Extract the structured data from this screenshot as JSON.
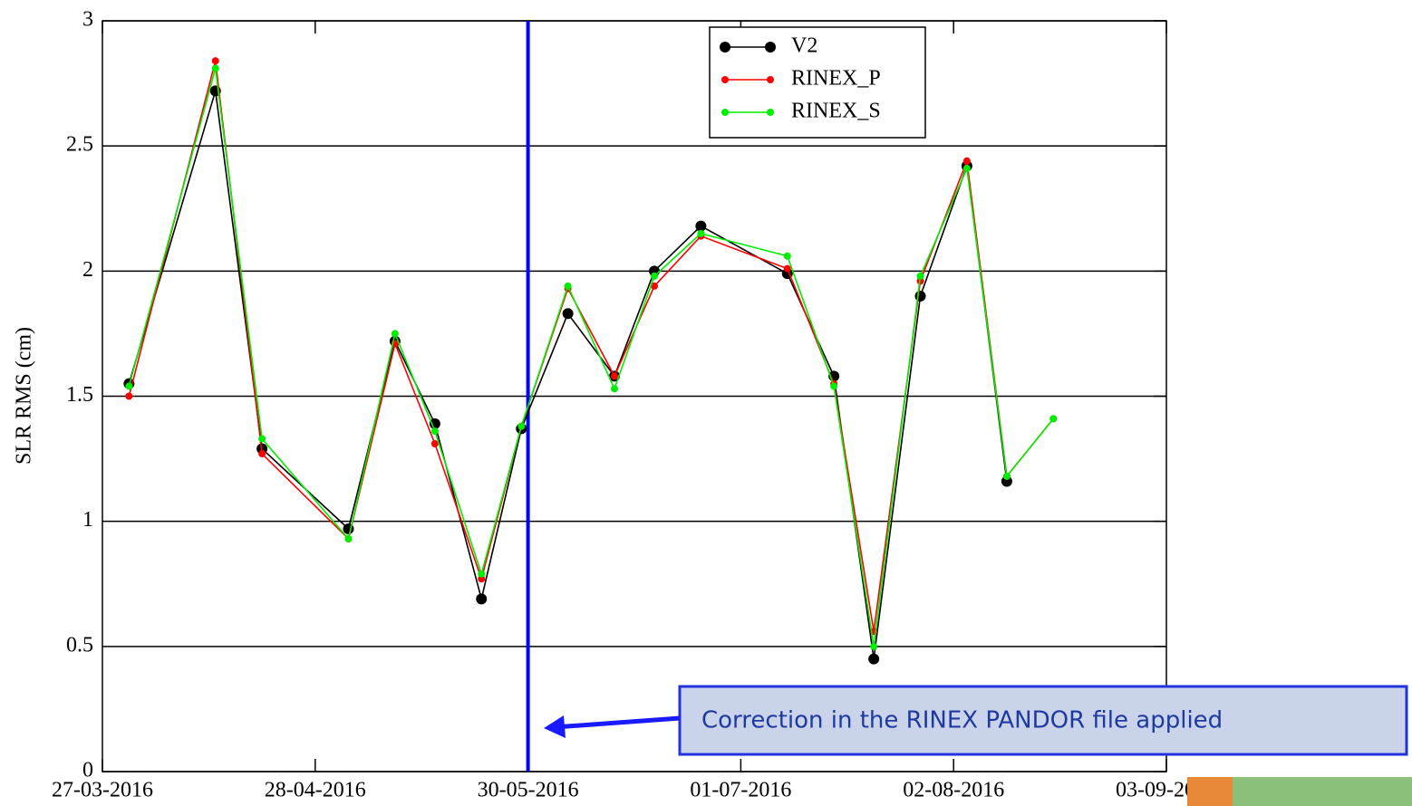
{
  "chart_data": {
    "type": "line",
    "y_label": "SLR RMS (cm)",
    "x": [
      "31-03-2016",
      "13-04-2016",
      "20-04-2016",
      "03-05-2016",
      "10-05-2016",
      "16-05-2016",
      "23-05-2016",
      "29-05-2016",
      "05-06-2016",
      "12-06-2016",
      "18-06-2016",
      "25-06-2016",
      "08-07-2016",
      "15-07-2016",
      "21-07-2016",
      "28-07-2016",
      "04-08-2016",
      "10-08-2016",
      "17-08-2016"
    ],
    "series": [
      {
        "name": "V2",
        "color": "#000000",
        "values": [
          1.55,
          2.72,
          1.29,
          0.97,
          1.72,
          1.39,
          0.69,
          1.37,
          1.83,
          1.58,
          2.0,
          2.18,
          1.99,
          1.58,
          0.45,
          1.9,
          2.42,
          1.16,
          null
        ]
      },
      {
        "name": "RINEX_P",
        "color": "#ff0000",
        "values": [
          1.5,
          2.84,
          1.27,
          0.93,
          1.71,
          1.31,
          0.77,
          1.38,
          1.93,
          1.58,
          1.94,
          2.14,
          2.01,
          1.55,
          0.56,
          1.96,
          2.44,
          1.18,
          1.41
        ]
      },
      {
        "name": "RINEX_S",
        "color": "#00ee00",
        "values": [
          1.54,
          2.81,
          1.33,
          0.93,
          1.75,
          1.36,
          0.79,
          1.38,
          1.94,
          1.53,
          1.98,
          2.15,
          2.06,
          1.54,
          0.5,
          1.98,
          2.41,
          1.18,
          1.41
        ]
      }
    ],
    "xlim": [
      "27-03-2016",
      "03-09-2016"
    ],
    "xticks": [
      "27-03-2016",
      "28-04-2016",
      "30-05-2016",
      "01-07-2016",
      "02-08-2016",
      "03-09-2016"
    ],
    "ylim": [
      0,
      3
    ],
    "yticks": [
      0,
      0.5,
      1,
      1.5,
      2,
      2.5,
      3
    ],
    "grid": true,
    "legend": "top-right",
    "vline": {
      "x": "30-05-2016",
      "color": "#0000ff"
    },
    "annotation": "Correction in the RINEX PANDOR file applied"
  }
}
